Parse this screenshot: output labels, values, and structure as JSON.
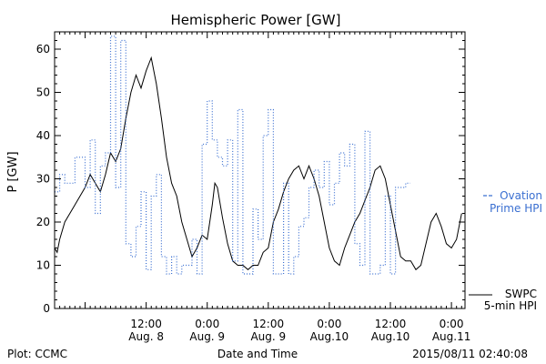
{
  "chart_data": {
    "type": "line",
    "title": "Hemispheric Power [GW]",
    "xlabel": "Date and Time",
    "ylabel": "P [GW]",
    "ylim": [
      0,
      64
    ],
    "xlim": [
      "2015-08-07T18:00",
      "2015-08-11T02:40"
    ],
    "grid": false,
    "yticks": [
      0,
      10,
      20,
      30,
      40,
      50,
      60
    ],
    "xtick_labels": [
      {
        "t": "2015-08-08T12:00",
        "line1": "12:00",
        "line2": "Aug. 8"
      },
      {
        "t": "2015-08-09T00:00",
        "line1": "0:00",
        "line2": "Aug. 9"
      },
      {
        "t": "2015-08-09T12:00",
        "line1": "12:00",
        "line2": "Aug. 9"
      },
      {
        "t": "2015-08-10T00:00",
        "line1": "0:00",
        "line2": "Aug.10"
      },
      {
        "t": "2015-08-10T12:00",
        "line1": "12:00",
        "line2": "Aug.10"
      },
      {
        "t": "2015-08-11T00:00",
        "line1": "0:00",
        "line2": "Aug.11"
      }
    ],
    "series": [
      {
        "name": "SWPC 5-min HPI",
        "color": "#000000",
        "style": "solid",
        "points": [
          [
            "2015-08-07T18:00",
            14
          ],
          [
            "2015-08-07T18:30",
            13
          ],
          [
            "2015-08-07T19:00",
            16
          ],
          [
            "2015-08-07T20:00",
            20
          ],
          [
            "2015-08-07T22:00",
            24
          ],
          [
            "2015-08-08T00:00",
            28
          ],
          [
            "2015-08-08T01:00",
            31
          ],
          [
            "2015-08-08T02:00",
            29
          ],
          [
            "2015-08-08T03:00",
            27
          ],
          [
            "2015-08-08T04:00",
            31
          ],
          [
            "2015-08-08T05:00",
            36
          ],
          [
            "2015-08-08T06:00",
            34
          ],
          [
            "2015-08-08T07:00",
            37
          ],
          [
            "2015-08-08T08:00",
            44
          ],
          [
            "2015-08-08T09:00",
            50
          ],
          [
            "2015-08-08T10:00",
            54
          ],
          [
            "2015-08-08T11:00",
            51
          ],
          [
            "2015-08-08T12:00",
            55
          ],
          [
            "2015-08-08T13:00",
            58
          ],
          [
            "2015-08-08T14:00",
            52
          ],
          [
            "2015-08-08T15:00",
            44
          ],
          [
            "2015-08-08T16:00",
            35
          ],
          [
            "2015-08-08T17:00",
            29
          ],
          [
            "2015-08-08T18:00",
            26
          ],
          [
            "2015-08-08T19:00",
            20
          ],
          [
            "2015-08-08T20:00",
            16
          ],
          [
            "2015-08-08T21:00",
            12
          ],
          [
            "2015-08-08T22:00",
            14
          ],
          [
            "2015-08-08T23:00",
            17
          ],
          [
            "2015-08-09T00:00",
            16
          ],
          [
            "2015-08-09T01:00",
            24
          ],
          [
            "2015-08-09T01:30",
            29
          ],
          [
            "2015-08-09T02:00",
            28
          ],
          [
            "2015-08-09T03:00",
            21
          ],
          [
            "2015-08-09T04:00",
            15
          ],
          [
            "2015-08-09T05:00",
            11
          ],
          [
            "2015-08-09T06:00",
            10
          ],
          [
            "2015-08-09T07:00",
            10
          ],
          [
            "2015-08-09T08:00",
            9
          ],
          [
            "2015-08-09T09:00",
            10
          ],
          [
            "2015-08-09T10:00",
            10
          ],
          [
            "2015-08-09T11:00",
            13
          ],
          [
            "2015-08-09T12:00",
            14
          ],
          [
            "2015-08-09T13:00",
            20
          ],
          [
            "2015-08-09T14:00",
            23
          ],
          [
            "2015-08-09T15:00",
            27
          ],
          [
            "2015-08-09T16:00",
            30
          ],
          [
            "2015-08-09T17:00",
            32
          ],
          [
            "2015-08-09T18:00",
            33
          ],
          [
            "2015-08-09T19:00",
            30
          ],
          [
            "2015-08-09T20:00",
            33
          ],
          [
            "2015-08-09T21:00",
            30
          ],
          [
            "2015-08-09T22:00",
            26
          ],
          [
            "2015-08-09T23:00",
            20
          ],
          [
            "2015-08-10T00:00",
            14
          ],
          [
            "2015-08-10T01:00",
            11
          ],
          [
            "2015-08-10T02:00",
            10
          ],
          [
            "2015-08-10T03:00",
            14
          ],
          [
            "2015-08-10T04:00",
            17
          ],
          [
            "2015-08-10T05:00",
            20
          ],
          [
            "2015-08-10T06:00",
            22
          ],
          [
            "2015-08-10T07:00",
            25
          ],
          [
            "2015-08-10T08:00",
            28
          ],
          [
            "2015-08-10T09:00",
            32
          ],
          [
            "2015-08-10T10:00",
            33
          ],
          [
            "2015-08-10T11:00",
            30
          ],
          [
            "2015-08-10T12:00",
            24
          ],
          [
            "2015-08-10T13:00",
            18
          ],
          [
            "2015-08-10T14:00",
            12
          ],
          [
            "2015-08-10T15:00",
            11
          ],
          [
            "2015-08-10T16:00",
            11
          ],
          [
            "2015-08-10T17:00",
            9
          ],
          [
            "2015-08-10T18:00",
            10
          ],
          [
            "2015-08-10T19:00",
            15
          ],
          [
            "2015-08-10T20:00",
            20
          ],
          [
            "2015-08-10T21:00",
            22
          ],
          [
            "2015-08-10T22:00",
            19
          ],
          [
            "2015-08-10T23:00",
            15
          ],
          [
            "2015-08-11T00:00",
            14
          ],
          [
            "2015-08-11T01:00",
            16
          ],
          [
            "2015-08-11T02:00",
            22
          ]
        ]
      },
      {
        "name": "Ovation Prime HPI",
        "color": "#3a6fd1",
        "style": "dotted-step",
        "points": [
          [
            "2015-08-07T18:00",
            27
          ],
          [
            "2015-08-07T19:00",
            31
          ],
          [
            "2015-08-07T20:00",
            29
          ],
          [
            "2015-08-07T22:00",
            35
          ],
          [
            "2015-08-08T00:00",
            28
          ],
          [
            "2015-08-08T01:00",
            39
          ],
          [
            "2015-08-08T02:00",
            22
          ],
          [
            "2015-08-08T03:00",
            33
          ],
          [
            "2015-08-08T04:00",
            36
          ],
          [
            "2015-08-08T05:00",
            63
          ],
          [
            "2015-08-08T06:00",
            28
          ],
          [
            "2015-08-08T07:00",
            62
          ],
          [
            "2015-08-08T08:00",
            15
          ],
          [
            "2015-08-08T09:00",
            12
          ],
          [
            "2015-08-08T10:00",
            19
          ],
          [
            "2015-08-08T11:00",
            27
          ],
          [
            "2015-08-08T12:00",
            9
          ],
          [
            "2015-08-08T13:00",
            26
          ],
          [
            "2015-08-08T14:00",
            31
          ],
          [
            "2015-08-08T15:00",
            12
          ],
          [
            "2015-08-08T16:00",
            8
          ],
          [
            "2015-08-08T17:00",
            12
          ],
          [
            "2015-08-08T18:00",
            8
          ],
          [
            "2015-08-08T19:00",
            10
          ],
          [
            "2015-08-08T20:00",
            10
          ],
          [
            "2015-08-08T21:00",
            16
          ],
          [
            "2015-08-08T22:00",
            8
          ],
          [
            "2015-08-08T23:00",
            38
          ],
          [
            "2015-08-09T00:00",
            48
          ],
          [
            "2015-08-09T01:00",
            39
          ],
          [
            "2015-08-09T02:00",
            35
          ],
          [
            "2015-08-09T03:00",
            33
          ],
          [
            "2015-08-09T04:00",
            39
          ],
          [
            "2015-08-09T05:00",
            11
          ],
          [
            "2015-08-09T06:00",
            46
          ],
          [
            "2015-08-09T07:00",
            8
          ],
          [
            "2015-08-09T08:00",
            8
          ],
          [
            "2015-08-09T09:00",
            23
          ],
          [
            "2015-08-09T10:00",
            16
          ],
          [
            "2015-08-09T11:00",
            40
          ],
          [
            "2015-08-09T12:00",
            46
          ],
          [
            "2015-08-09T13:00",
            8
          ],
          [
            "2015-08-09T14:00",
            8
          ],
          [
            "2015-08-09T15:00",
            29
          ],
          [
            "2015-08-09T16:00",
            8
          ],
          [
            "2015-08-09T17:00",
            12
          ],
          [
            "2015-08-09T18:00",
            19
          ],
          [
            "2015-08-09T19:00",
            21
          ],
          [
            "2015-08-09T20:00",
            28
          ],
          [
            "2015-08-09T21:00",
            32
          ],
          [
            "2015-08-09T22:00",
            28
          ],
          [
            "2015-08-09T23:00",
            34
          ],
          [
            "2015-08-10T00:00",
            24
          ],
          [
            "2015-08-10T01:00",
            29
          ],
          [
            "2015-08-10T02:00",
            36
          ],
          [
            "2015-08-10T03:00",
            33
          ],
          [
            "2015-08-10T04:00",
            38
          ],
          [
            "2015-08-10T05:00",
            15
          ],
          [
            "2015-08-10T06:00",
            10
          ],
          [
            "2015-08-10T07:00",
            41
          ],
          [
            "2015-08-10T08:00",
            8
          ],
          [
            "2015-08-10T09:00",
            8
          ],
          [
            "2015-08-10T10:00",
            10
          ],
          [
            "2015-08-10T11:00",
            26
          ],
          [
            "2015-08-10T12:00",
            8
          ],
          [
            "2015-08-10T13:00",
            28
          ],
          [
            "2015-08-10T14:00",
            28
          ],
          [
            "2015-08-10T15:00",
            29
          ]
        ]
      }
    ],
    "legend": [
      {
        "line1": "Ovation",
        "line2": "Prime HPI",
        "color": "#3a6fd1"
      },
      {
        "line1": "SWPC",
        "line2": "5-min HPI",
        "color": "#000000"
      }
    ]
  },
  "footer": {
    "left": "Plot: CCMC",
    "right": "2015/08/11 02:40:08"
  }
}
